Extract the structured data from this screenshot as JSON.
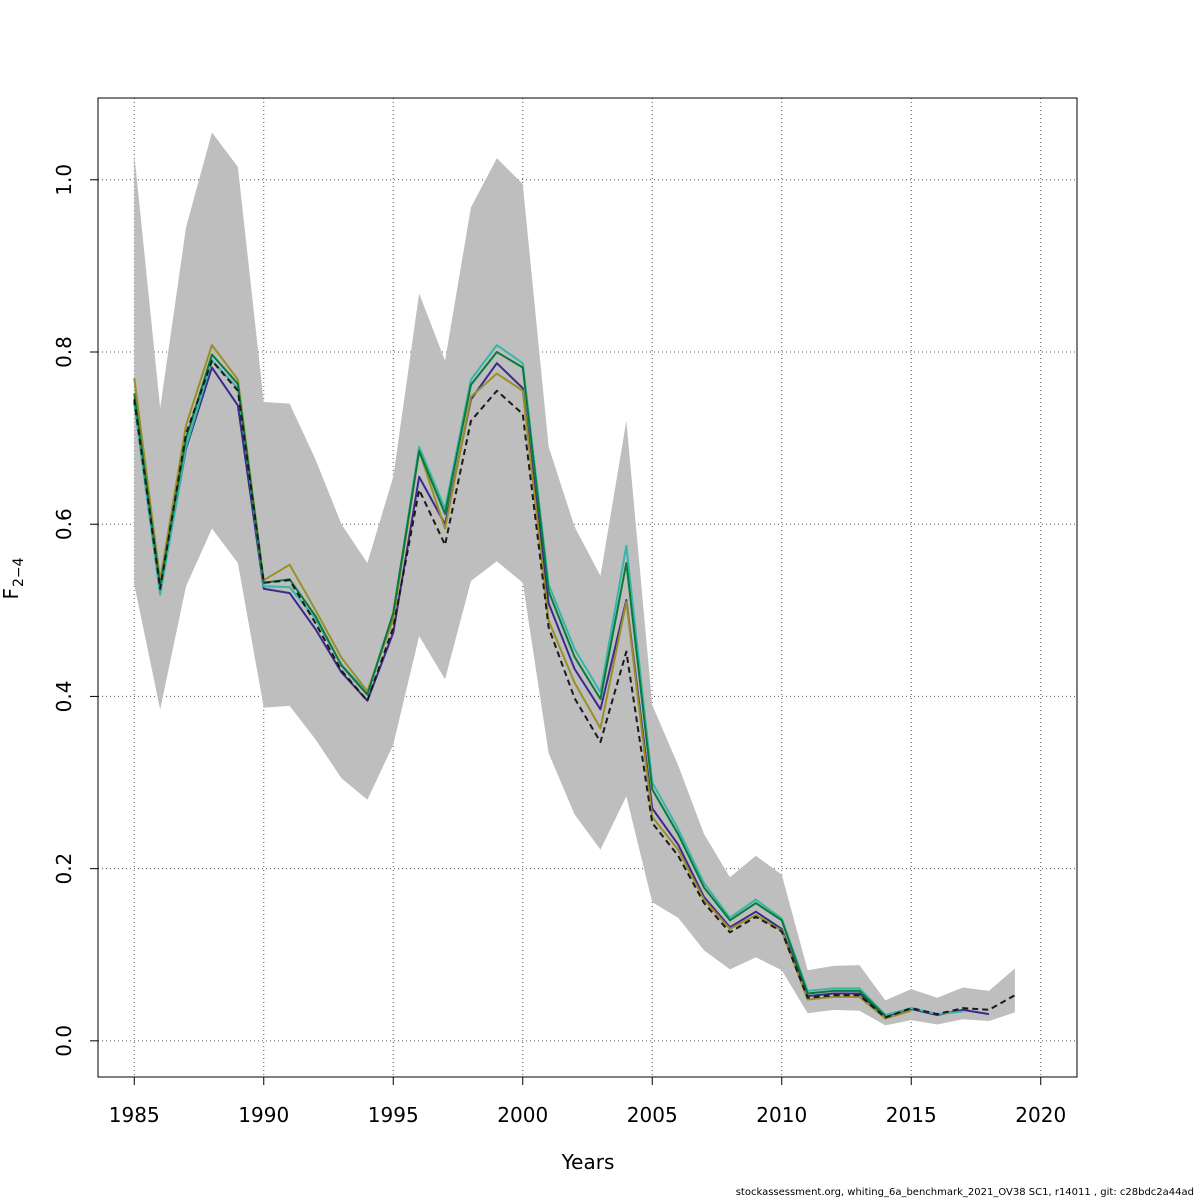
{
  "chart_data": {
    "type": "line",
    "xlabel": "Years",
    "ylabel_main": "F",
    "ylabel_sub": "2−4",
    "xlim": [
      1983.6,
      2021.4
    ],
    "ylim": [
      -0.042,
      1.095
    ],
    "x_ticks": [
      1985,
      1990,
      1995,
      2000,
      2005,
      2010,
      2015,
      2020
    ],
    "y_ticks": [
      0.0,
      0.2,
      0.4,
      0.6,
      0.8,
      1.0
    ],
    "x_tick_labels": [
      "1985",
      "1990",
      "1995",
      "2000",
      "2005",
      "2010",
      "2015",
      "2020"
    ],
    "y_tick_labels": [
      "0.0",
      "0.2",
      "0.4",
      "0.6",
      "0.8",
      "1.0"
    ],
    "grid": true,
    "band": {
      "color": "#bebebe",
      "x": [
        1985,
        1986,
        1987,
        1988,
        1989,
        1990,
        1991,
        1992,
        1993,
        1994,
        1995,
        1996,
        1997,
        1998,
        1999,
        2000,
        2001,
        2002,
        2003,
        2004,
        2005,
        2006,
        2007,
        2008,
        2009,
        2010,
        2011,
        2012,
        2013,
        2014,
        2015,
        2016,
        2017,
        2018,
        2019
      ],
      "upper": [
        1.03,
        0.735,
        0.945,
        1.055,
        1.015,
        0.742,
        0.74,
        0.675,
        0.6,
        0.555,
        0.655,
        0.868,
        0.79,
        0.968,
        1.025,
        0.995,
        0.69,
        0.597,
        0.54,
        0.72,
        0.39,
        0.32,
        0.24,
        0.19,
        0.215,
        0.193,
        0.082,
        0.087,
        0.088,
        0.047,
        0.06,
        0.05,
        0.062,
        0.058,
        0.084
      ],
      "lower": [
        0.53,
        0.385,
        0.528,
        0.595,
        0.555,
        0.387,
        0.389,
        0.35,
        0.305,
        0.28,
        0.344,
        0.47,
        0.42,
        0.534,
        0.557,
        0.532,
        0.334,
        0.263,
        0.222,
        0.284,
        0.161,
        0.143,
        0.105,
        0.083,
        0.097,
        0.082,
        0.032,
        0.036,
        0.035,
        0.018,
        0.024,
        0.019,
        0.025,
        0.023,
        0.033
      ]
    },
    "series": [
      {
        "color": "#c0c0c0",
        "dash": "3,3",
        "width": 2,
        "x": [
          1985,
          1986,
          1987,
          1988,
          1989,
          1990,
          1991,
          1992,
          1993,
          1994,
          1995,
          1996,
          1997,
          1998,
          1999,
          2000,
          2001,
          2002,
          2003,
          2004,
          2005,
          2006,
          2007,
          2008,
          2009,
          2010,
          2011,
          2012,
          2013,
          2014,
          2015,
          2016,
          2017,
          2018,
          2019
        ],
        "values": [
          0.745,
          0.525,
          0.705,
          0.79,
          0.755,
          0.532,
          0.535,
          0.485,
          0.43,
          0.395,
          0.48,
          0.64,
          0.576,
          0.72,
          0.755,
          0.728,
          0.48,
          0.398,
          0.347,
          0.452,
          0.253,
          0.215,
          0.16,
          0.126,
          0.144,
          0.127,
          0.05,
          0.053,
          0.053,
          0.027,
          0.038,
          0.031,
          0.038,
          0.036,
          0.053
        ]
      },
      {
        "color": "#3b2a8c",
        "dash": "",
        "width": 2,
        "x": [
          1985,
          1986,
          1987,
          1988,
          1989,
          1990,
          1991,
          1992,
          1993,
          1994,
          1995,
          1996,
          1997,
          1998,
          1999,
          2000,
          2001,
          2002,
          2003,
          2004,
          2005,
          2006,
          2007,
          2008,
          2009,
          2010,
          2011,
          2012,
          2013,
          2014,
          2015,
          2016,
          2017,
          2018
        ],
        "values": [
          0.742,
          0.52,
          0.688,
          0.782,
          0.738,
          0.525,
          0.52,
          0.478,
          0.428,
          0.395,
          0.474,
          0.655,
          0.6,
          0.745,
          0.787,
          0.758,
          0.508,
          0.432,
          0.385,
          0.512,
          0.27,
          0.228,
          0.167,
          0.132,
          0.15,
          0.13,
          0.052,
          0.055,
          0.055,
          0.028,
          0.037,
          0.03,
          0.036,
          0.031
        ]
      },
      {
        "color": "#35b7a8",
        "dash": "",
        "width": 2,
        "x": [
          1985,
          1986,
          1987,
          1988,
          1989,
          1990,
          1991,
          1992,
          1993,
          1994,
          1995,
          1996,
          1997,
          1998,
          1999,
          2000,
          2001,
          2002,
          2003,
          2004,
          2005,
          2006,
          2007,
          2008,
          2009,
          2010,
          2011,
          2012,
          2013,
          2014,
          2015,
          2016,
          2017
        ],
        "values": [
          0.74,
          0.518,
          0.69,
          0.79,
          0.758,
          0.528,
          0.527,
          0.49,
          0.437,
          0.404,
          0.496,
          0.69,
          0.618,
          0.768,
          0.808,
          0.787,
          0.53,
          0.455,
          0.405,
          0.575,
          0.3,
          0.246,
          0.183,
          0.143,
          0.164,
          0.142,
          0.058,
          0.061,
          0.061,
          0.03,
          0.038,
          0.031,
          0.034
        ]
      },
      {
        "color": "#9a8f27",
        "dash": "",
        "width": 2,
        "x": [
          1985,
          1986,
          1987,
          1988,
          1989,
          1990,
          1991,
          1992,
          1993,
          1994,
          1995,
          1996,
          1997,
          1998,
          1999,
          2000,
          2001,
          2002,
          2003,
          2004,
          2005,
          2006,
          2007,
          2008,
          2009,
          2010,
          2011,
          2012,
          2013,
          2014,
          2015
        ],
        "values": [
          0.77,
          0.535,
          0.715,
          0.808,
          0.768,
          0.535,
          0.553,
          0.5,
          0.445,
          0.406,
          0.49,
          0.685,
          0.595,
          0.748,
          0.775,
          0.755,
          0.488,
          0.416,
          0.363,
          0.51,
          0.26,
          0.222,
          0.164,
          0.13,
          0.146,
          0.128,
          0.048,
          0.051,
          0.051,
          0.026,
          0.035
        ]
      },
      {
        "color": "#0a7a3c",
        "dash": "",
        "width": 2,
        "x": [
          1985,
          1986,
          1987,
          1988,
          1989,
          1990,
          1991,
          1992,
          1993,
          1994,
          1995,
          1996,
          1997,
          1998,
          1999,
          2000,
          2001,
          2002,
          2003,
          2004,
          2005,
          2006,
          2007,
          2008,
          2009,
          2010,
          2011,
          2012,
          2013,
          2014
        ],
        "values": [
          0.752,
          0.528,
          0.7,
          0.797,
          0.763,
          0.532,
          0.536,
          0.493,
          0.436,
          0.402,
          0.497,
          0.685,
          0.612,
          0.762,
          0.8,
          0.782,
          0.522,
          0.446,
          0.397,
          0.555,
          0.292,
          0.24,
          0.178,
          0.14,
          0.16,
          0.14,
          0.055,
          0.058,
          0.058,
          0.029
        ]
      },
      {
        "color": "#1a1a1a",
        "dash": "6,4",
        "width": 2,
        "x": [
          1985,
          1986,
          1987,
          1988,
          1989,
          1990,
          1991,
          1992,
          1993,
          1994,
          1995,
          1996,
          1997,
          1998,
          1999,
          2000,
          2001,
          2002,
          2003,
          2004,
          2005,
          2006,
          2007,
          2008,
          2009,
          2010,
          2011,
          2012,
          2013,
          2014,
          2015,
          2016,
          2017,
          2018,
          2019
        ],
        "values": [
          0.745,
          0.525,
          0.705,
          0.79,
          0.755,
          0.532,
          0.535,
          0.485,
          0.43,
          0.395,
          0.48,
          0.64,
          0.576,
          0.72,
          0.755,
          0.728,
          0.48,
          0.398,
          0.347,
          0.452,
          0.253,
          0.215,
          0.16,
          0.126,
          0.144,
          0.127,
          0.05,
          0.053,
          0.053,
          0.027,
          0.038,
          0.031,
          0.038,
          0.036,
          0.053
        ]
      }
    ]
  },
  "footer": "stockassessment.org, whiting_6a_benchmark_2021_OV38   SC1, r14011 , git: c28bdc2a44ad"
}
